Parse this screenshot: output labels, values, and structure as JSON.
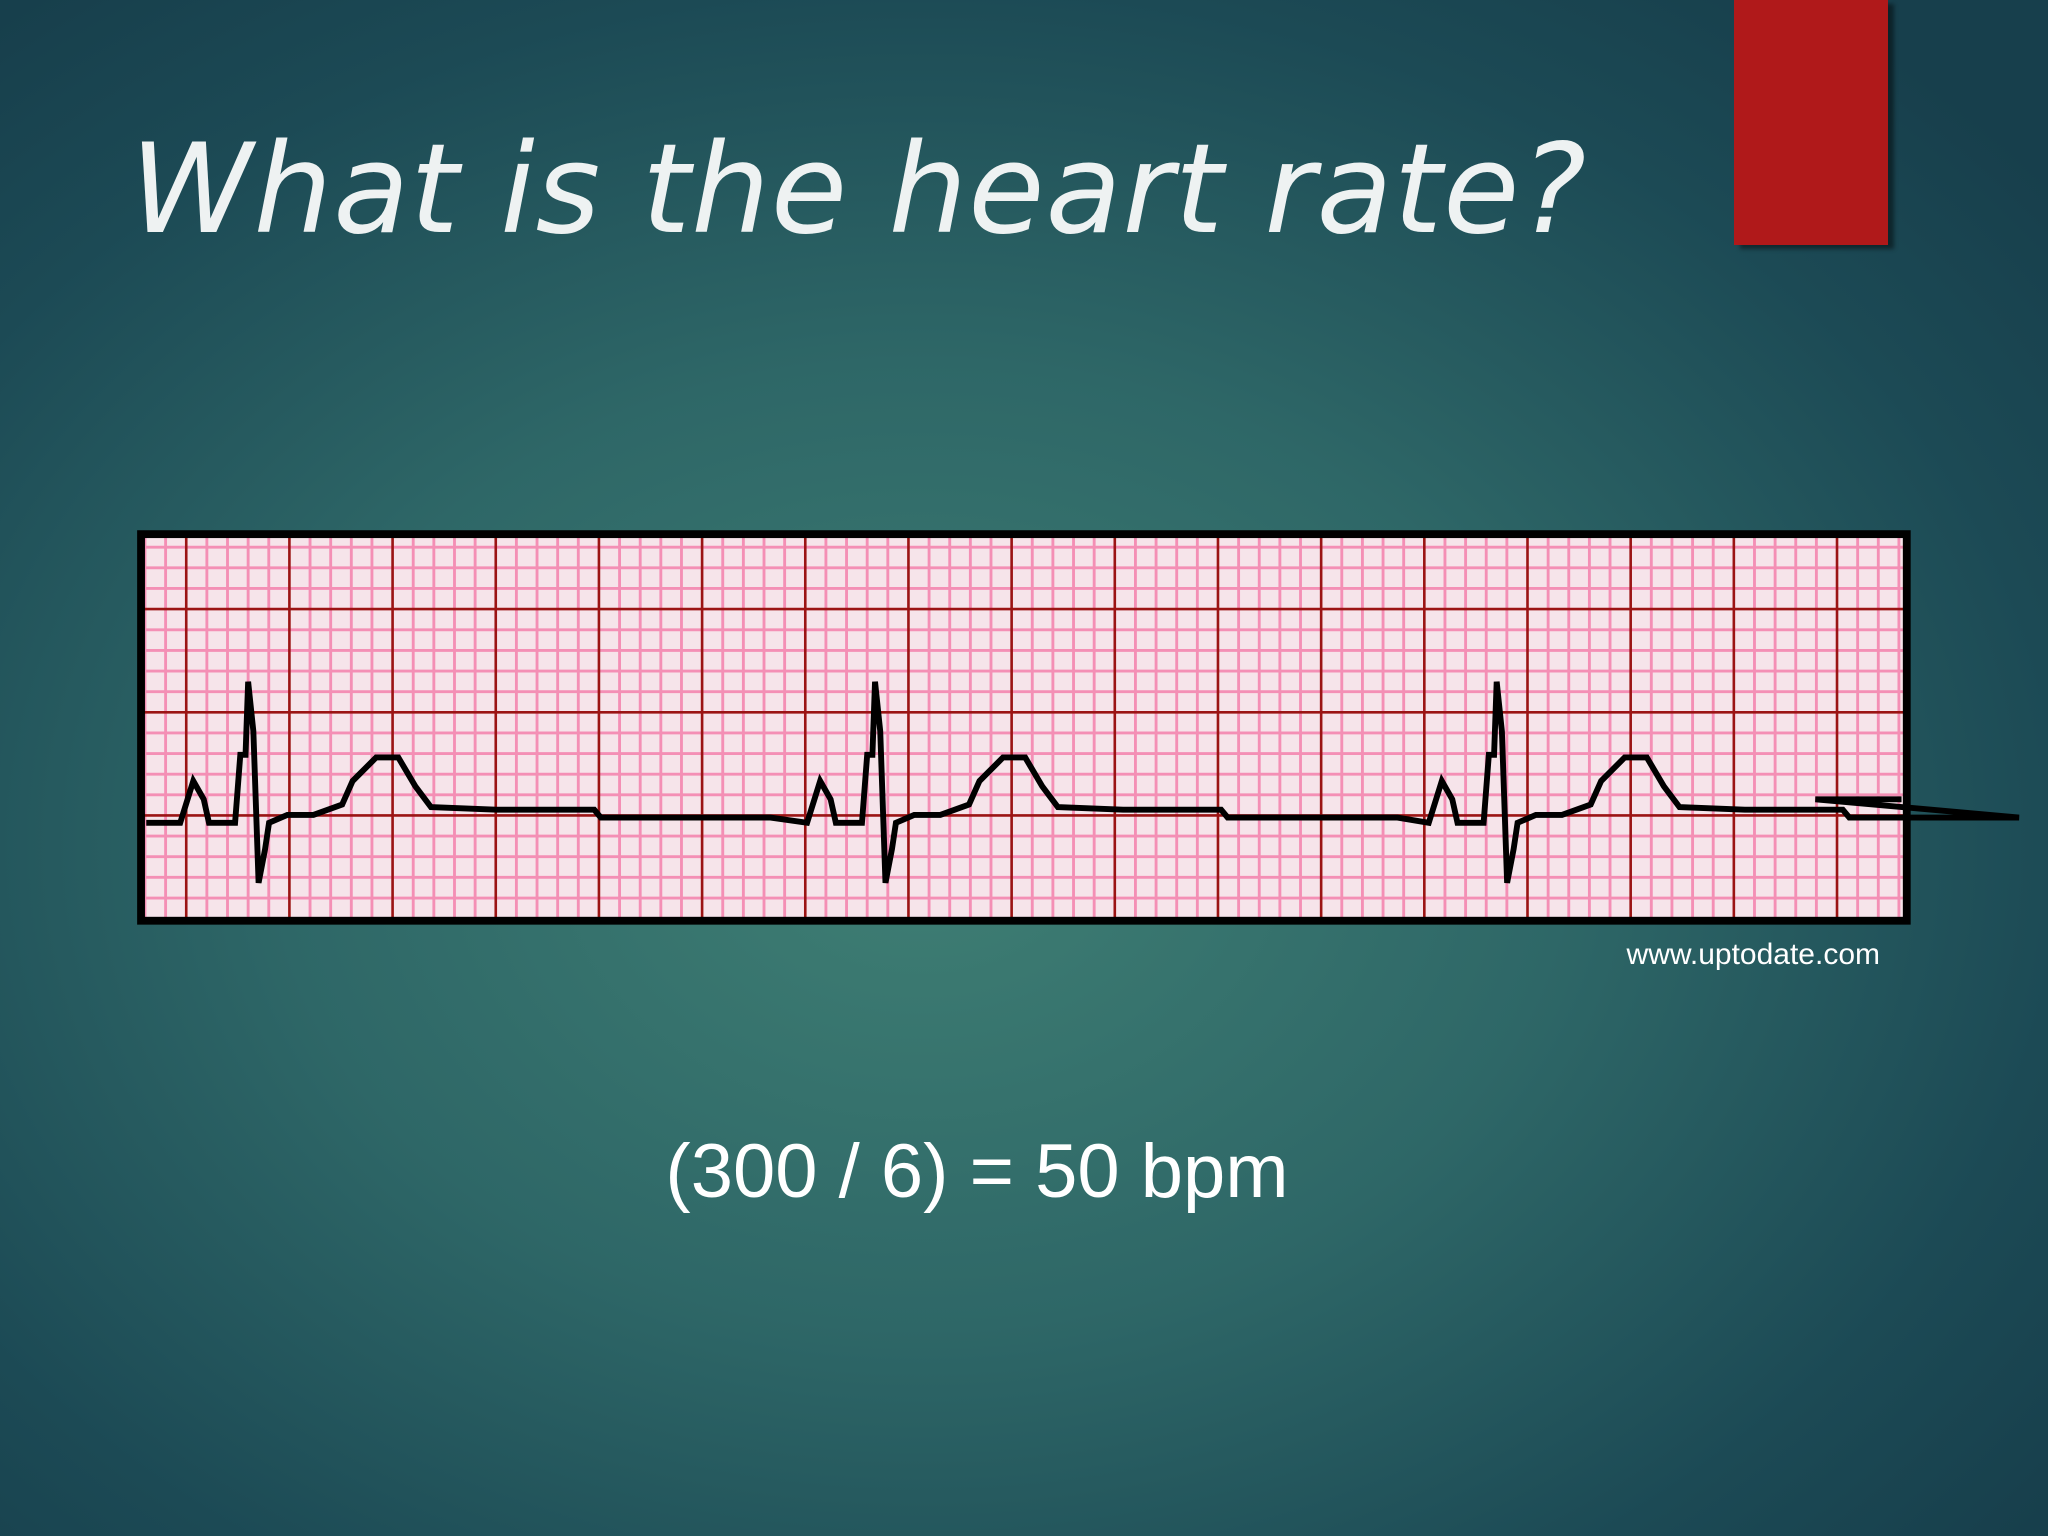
{
  "title": "What is the heart rate?",
  "source": "www.uptodate.com",
  "formula": "(300 / 6) = 50 bpm"
}
